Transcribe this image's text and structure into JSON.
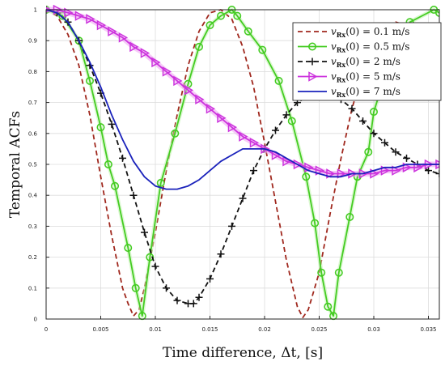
{
  "chart_data": {
    "type": "line",
    "title": "",
    "xlabel": "Time difference, Δt, [s]",
    "ylabel": "Temporal ACFs",
    "xlim": [
      0,
      0.036
    ],
    "ylim": [
      0,
      1
    ],
    "xticks": [
      0,
      0.005,
      0.01,
      0.015,
      0.02,
      0.025,
      0.03,
      0.035
    ],
    "xtick_labels": [
      "0",
      "0.005",
      "0.01",
      "0.015",
      "0.02",
      "0.025",
      "0.03",
      "0.035"
    ],
    "yticks": [
      0,
      0.1,
      0.2,
      0.3,
      0.4,
      0.5,
      0.6,
      0.7,
      0.8,
      0.9,
      1
    ],
    "ytick_labels": [
      "0",
      "0.1",
      "0.2",
      "0.3",
      "0.4",
      "0.5",
      "0.6",
      "0.7",
      "0.8",
      "0.9",
      "1"
    ],
    "grid": true,
    "legend_position": "top-right",
    "series": [
      {
        "name": "v_Rx(0) = 0.1 m/s",
        "legend_main": "v",
        "legend_sub": "Rx",
        "legend_rest": "(0) = 0.1 m/s",
        "color": "#a0281e",
        "dash": "dashed",
        "marker": "none",
        "x": [
          0,
          0.001,
          0.002,
          0.003,
          0.004,
          0.005,
          0.006,
          0.007,
          0.0075,
          0.008,
          0.0085,
          0.009,
          0.01,
          0.011,
          0.012,
          0.013,
          0.014,
          0.015,
          0.016,
          0.017,
          0.018,
          0.019,
          0.02,
          0.021,
          0.022,
          0.023,
          0.0235,
          0.024,
          0.025,
          0.026,
          0.027,
          0.028,
          0.029,
          0.03,
          0.031,
          0.032,
          0.033,
          0.034,
          0.035,
          0.036
        ],
        "y": [
          1.0,
          0.98,
          0.92,
          0.82,
          0.66,
          0.46,
          0.27,
          0.1,
          0.05,
          0.01,
          0.03,
          0.1,
          0.28,
          0.48,
          0.66,
          0.82,
          0.93,
          0.99,
          1.0,
          0.97,
          0.88,
          0.75,
          0.57,
          0.38,
          0.19,
          0.04,
          0.005,
          0.03,
          0.15,
          0.34,
          0.52,
          0.68,
          0.8,
          0.89,
          0.94,
          0.96,
          0.95,
          0.9,
          0.82,
          0.72
        ]
      },
      {
        "name": "v_Rx(0) = 0.5 m/s",
        "legend_main": "v",
        "legend_sub": "Rx",
        "legend_rest": "(0) = 0.5 m/s",
        "color": "#44cc22",
        "dash": "solid",
        "marker": "circle",
        "x": [
          0,
          0.0015,
          0.003,
          0.004,
          0.005,
          0.0057,
          0.0063,
          0.0075,
          0.0082,
          0.0088,
          0.0095,
          0.0105,
          0.0118,
          0.013,
          0.014,
          0.015,
          0.016,
          0.017,
          0.0175,
          0.0185,
          0.0198,
          0.0213,
          0.0225,
          0.0238,
          0.0246,
          0.0252,
          0.0258,
          0.0263,
          0.0268,
          0.0278,
          0.0285,
          0.0295,
          0.03,
          0.0308,
          0.0318,
          0.0333,
          0.0355,
          0.036
        ],
        "y": [
          1.0,
          0.98,
          0.9,
          0.77,
          0.62,
          0.5,
          0.43,
          0.23,
          0.1,
          0.01,
          0.2,
          0.44,
          0.6,
          0.76,
          0.88,
          0.95,
          0.98,
          1.0,
          0.98,
          0.93,
          0.87,
          0.77,
          0.64,
          0.46,
          0.31,
          0.15,
          0.04,
          0.01,
          0.15,
          0.33,
          0.46,
          0.54,
          0.67,
          0.76,
          0.88,
          0.96,
          1.0,
          0.99
        ]
      },
      {
        "name": "v_Rx(0) = 2 m/s",
        "legend_main": "v",
        "legend_sub": "Rx",
        "legend_rest": "(0) = 2 m/s",
        "color": "#111111",
        "dash": "dashed",
        "marker": "plus",
        "x": [
          0,
          0.001,
          0.002,
          0.003,
          0.004,
          0.005,
          0.006,
          0.007,
          0.008,
          0.009,
          0.01,
          0.011,
          0.012,
          0.013,
          0.0135,
          0.014,
          0.015,
          0.016,
          0.017,
          0.018,
          0.019,
          0.02,
          0.021,
          0.022,
          0.023,
          0.024,
          0.025,
          0.026,
          0.027,
          0.028,
          0.029,
          0.03,
          0.031,
          0.032,
          0.033,
          0.034,
          0.035,
          0.036
        ],
        "y": [
          1.0,
          0.99,
          0.96,
          0.9,
          0.82,
          0.73,
          0.63,
          0.52,
          0.4,
          0.28,
          0.17,
          0.1,
          0.06,
          0.05,
          0.05,
          0.07,
          0.13,
          0.21,
          0.3,
          0.39,
          0.48,
          0.55,
          0.61,
          0.66,
          0.7,
          0.72,
          0.73,
          0.73,
          0.71,
          0.68,
          0.64,
          0.6,
          0.57,
          0.54,
          0.52,
          0.5,
          0.48,
          0.47
        ]
      },
      {
        "name": "v_Rx(0) = 5 m/s",
        "legend_main": "v",
        "legend_sub": "Rx",
        "legend_rest": "(0) = 5 m/s",
        "color": "#cc33dd",
        "dash": "solid",
        "marker": "triangle-right",
        "x": [
          0,
          0.001,
          0.002,
          0.003,
          0.004,
          0.005,
          0.006,
          0.007,
          0.008,
          0.009,
          0.01,
          0.011,
          0.012,
          0.013,
          0.014,
          0.015,
          0.016,
          0.017,
          0.018,
          0.019,
          0.02,
          0.021,
          0.022,
          0.023,
          0.024,
          0.025,
          0.026,
          0.027,
          0.028,
          0.029,
          0.03,
          0.031,
          0.032,
          0.033,
          0.034,
          0.035,
          0.036
        ],
        "y": [
          1.0,
          1.0,
          0.99,
          0.98,
          0.97,
          0.95,
          0.93,
          0.91,
          0.88,
          0.86,
          0.83,
          0.8,
          0.77,
          0.74,
          0.71,
          0.68,
          0.65,
          0.62,
          0.59,
          0.57,
          0.55,
          0.53,
          0.51,
          0.5,
          0.49,
          0.48,
          0.47,
          0.47,
          0.47,
          0.47,
          0.47,
          0.48,
          0.48,
          0.49,
          0.49,
          0.5,
          0.5
        ]
      },
      {
        "name": "v_Rx(0) = 7 m/s",
        "legend_main": "v",
        "legend_sub": "Rx",
        "legend_rest": "(0) = 7 m/s",
        "color": "#1a22bb",
        "dash": "solid",
        "marker": "none",
        "x": [
          0,
          0.001,
          0.002,
          0.003,
          0.004,
          0.005,
          0.006,
          0.007,
          0.008,
          0.009,
          0.01,
          0.011,
          0.012,
          0.013,
          0.014,
          0.015,
          0.016,
          0.017,
          0.018,
          0.019,
          0.02,
          0.021,
          0.022,
          0.023,
          0.024,
          0.025,
          0.026,
          0.027,
          0.028,
          0.029,
          0.03,
          0.031,
          0.032,
          0.033,
          0.034,
          0.035,
          0.036
        ],
        "y": [
          1.0,
          0.99,
          0.96,
          0.9,
          0.83,
          0.75,
          0.66,
          0.58,
          0.51,
          0.46,
          0.43,
          0.42,
          0.42,
          0.43,
          0.45,
          0.48,
          0.51,
          0.53,
          0.55,
          0.55,
          0.55,
          0.54,
          0.52,
          0.5,
          0.48,
          0.47,
          0.46,
          0.46,
          0.47,
          0.47,
          0.48,
          0.49,
          0.49,
          0.5,
          0.5,
          0.5,
          0.5
        ]
      }
    ]
  }
}
